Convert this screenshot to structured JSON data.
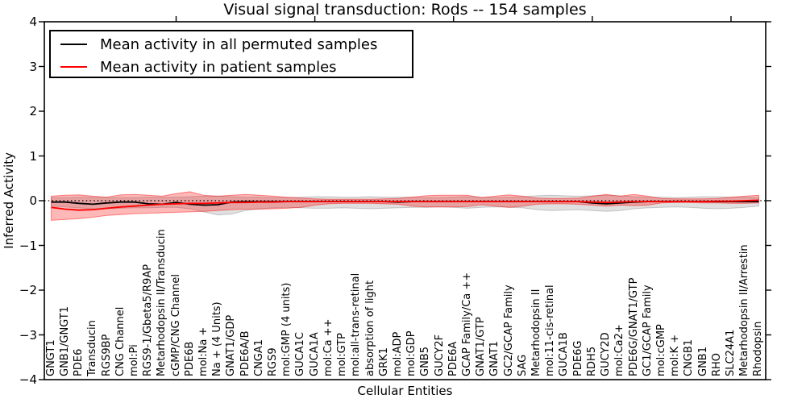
{
  "chart_data": {
    "type": "line",
    "title": "Visual signal transduction: Rods -- 154 samples",
    "xlabel": "Cellular Entities",
    "ylabel": "Inferred Activity",
    "ylim": [
      -4,
      4
    ],
    "ytick_values": [
      4,
      3,
      2,
      1,
      0,
      -1,
      -2,
      -3,
      -4
    ],
    "ytick_labels": [
      "4",
      "3",
      "2",
      "1",
      "0",
      "−1",
      "−2",
      "−3",
      "−4"
    ],
    "top_xtick_values": [
      10,
      20,
      30,
      40,
      50
    ],
    "grid": false,
    "legend_position": "upper left",
    "legend": [
      {
        "label": "Mean activity in all permuted samples",
        "color": "#000000"
      },
      {
        "label": "Mean activity in patient samples",
        "color": "#ff0000"
      }
    ],
    "zero_line": {
      "y": 0,
      "style": "dotted",
      "color": "#000000"
    },
    "categories": [
      "GNGT1",
      "GNB1/GNGT1",
      "PDE6",
      "Transducin",
      "RGS9BP",
      "CNG Channel",
      "mol:Pi",
      "RGS9-1/Gbeta5/R9AP",
      "Metarhodopsin II/Transducin",
      "cGMP/CNG Channel",
      "PDE6B",
      "mol:Na +",
      "Na + (4 Units)",
      "GNAT1/GDP",
      "PDE6A/B",
      "CNGA1",
      "RGS9",
      "mol:GMP (4 units)",
      "GUCA1C",
      "GUCA1A",
      "mol:Ca ++",
      "mol:GTP",
      "mol:all-trans-retinal",
      "absorption of light",
      "GRK1",
      "mol:ADP",
      "mol:GDP",
      "GNB5",
      "GUCY2F",
      "PDE6A",
      "GCAP Family/Ca ++",
      "GNAT1/GTP",
      "GNAT1",
      "GC2/GCAP Family",
      "SAG",
      "Metarhodopsin II",
      "mol:11-cis-retinal",
      "GUCA1B",
      "PDE6G",
      "RDH5",
      "GUCY2D",
      "mol:Ca2+",
      "PDE6G/GNAT1/GTP",
      "GC1/GCAP Family",
      "mol:cGMP",
      "mol:K +",
      "CNGB1",
      "GNB1",
      "RHO",
      "SLC24A1",
      "Metarhodopsin II/Arrestin",
      "Rhodopsin"
    ],
    "series": [
      {
        "name": "Mean activity in all permuted samples",
        "type": "line",
        "color": "#000000",
        "values": [
          -0.03,
          -0.03,
          -0.06,
          -0.08,
          -0.05,
          -0.03,
          -0.03,
          -0.07,
          -0.08,
          -0.04,
          -0.08,
          -0.1,
          -0.09,
          -0.03,
          -0.02,
          -0.02,
          -0.02,
          -0.02,
          -0.02,
          -0.02,
          -0.02,
          -0.02,
          -0.02,
          -0.02,
          -0.02,
          -0.03,
          -0.02,
          -0.02,
          -0.02,
          -0.02,
          -0.02,
          -0.02,
          -0.02,
          -0.02,
          -0.02,
          -0.02,
          -0.02,
          -0.02,
          -0.02,
          -0.05,
          -0.07,
          -0.05,
          -0.03,
          -0.02,
          -0.02,
          -0.02,
          -0.02,
          -0.02,
          -0.02,
          -0.02,
          -0.02,
          -0.02
        ]
      },
      {
        "name": "Mean activity in patient samples",
        "type": "line",
        "color": "#ff0000",
        "values": [
          -0.15,
          -0.19,
          -0.21,
          -0.2,
          -0.17,
          -0.14,
          -0.12,
          -0.1,
          -0.08,
          -0.07,
          -0.06,
          -0.06,
          -0.05,
          -0.04,
          -0.04,
          -0.03,
          -0.03,
          -0.02,
          -0.02,
          -0.02,
          -0.02,
          -0.02,
          -0.02,
          -0.02,
          -0.02,
          -0.02,
          -0.02,
          -0.02,
          -0.02,
          -0.02,
          -0.02,
          -0.02,
          -0.02,
          -0.02,
          -0.02,
          -0.02,
          -0.02,
          -0.02,
          -0.02,
          -0.03,
          -0.04,
          -0.03,
          -0.02,
          -0.02,
          -0.02,
          -0.02,
          -0.02,
          -0.02,
          -0.01,
          -0.01,
          0.0,
          0.01
        ]
      },
      {
        "name": "Permuted samples spread",
        "type": "band",
        "color": "#000000",
        "fill_opacity": 0.12,
        "upper": [
          0.07,
          0.07,
          0.08,
          0.08,
          0.07,
          0.07,
          0.07,
          0.08,
          0.08,
          0.08,
          0.09,
          0.1,
          0.1,
          0.09,
          0.08,
          0.08,
          0.07,
          0.07,
          0.08,
          0.09,
          0.09,
          0.08,
          0.08,
          0.09,
          0.08,
          0.08,
          0.08,
          0.07,
          0.07,
          0.08,
          0.09,
          0.08,
          0.07,
          0.08,
          0.09,
          0.11,
          0.12,
          0.11,
          0.1,
          0.11,
          0.12,
          0.11,
          0.09,
          0.08,
          0.08,
          0.07,
          0.08,
          0.09,
          0.09,
          0.08,
          0.08,
          0.07
        ],
        "lower": [
          -0.12,
          -0.14,
          -0.16,
          -0.18,
          -0.18,
          -0.17,
          -0.16,
          -0.16,
          -0.15,
          -0.15,
          -0.18,
          -0.25,
          -0.32,
          -0.3,
          -0.22,
          -0.18,
          -0.16,
          -0.15,
          -0.16,
          -0.17,
          -0.17,
          -0.16,
          -0.17,
          -0.18,
          -0.17,
          -0.16,
          -0.15,
          -0.15,
          -0.14,
          -0.15,
          -0.17,
          -0.15,
          -0.14,
          -0.15,
          -0.16,
          -0.2,
          -0.22,
          -0.21,
          -0.2,
          -0.22,
          -0.24,
          -0.22,
          -0.18,
          -0.16,
          -0.15,
          -0.14,
          -0.15,
          -0.17,
          -0.18,
          -0.17,
          -0.15,
          -0.12
        ]
      },
      {
        "name": "Patient samples spread",
        "type": "band",
        "color": "#ff0000",
        "fill_opacity": 0.28,
        "upper": [
          0.1,
          0.12,
          0.13,
          0.1,
          0.08,
          0.13,
          0.14,
          0.12,
          0.1,
          0.16,
          0.2,
          0.12,
          0.1,
          0.12,
          0.14,
          0.12,
          0.1,
          0.08,
          0.06,
          0.04,
          0.03,
          0.03,
          0.03,
          0.03,
          0.04,
          0.05,
          0.08,
          0.11,
          0.12,
          0.12,
          0.12,
          0.07,
          0.1,
          0.13,
          0.1,
          0.06,
          0.05,
          0.05,
          0.06,
          0.1,
          0.14,
          0.1,
          0.14,
          0.1,
          0.05,
          0.04,
          0.04,
          0.04,
          0.05,
          0.08,
          0.1,
          0.12
        ],
        "lower": [
          -0.44,
          -0.42,
          -0.4,
          -0.37,
          -0.33,
          -0.31,
          -0.29,
          -0.28,
          -0.27,
          -0.26,
          -0.25,
          -0.24,
          -0.22,
          -0.2,
          -0.19,
          -0.19,
          -0.18,
          -0.17,
          -0.15,
          -0.1,
          -0.07,
          -0.06,
          -0.06,
          -0.06,
          -0.07,
          -0.08,
          -0.12,
          -0.14,
          -0.14,
          -0.14,
          -0.13,
          -0.09,
          -0.12,
          -0.15,
          -0.12,
          -0.08,
          -0.07,
          -0.07,
          -0.08,
          -0.1,
          -0.12,
          -0.1,
          -0.11,
          -0.1,
          -0.05,
          -0.04,
          -0.04,
          -0.05,
          -0.05,
          -0.06,
          -0.06,
          -0.05
        ]
      }
    ]
  }
}
